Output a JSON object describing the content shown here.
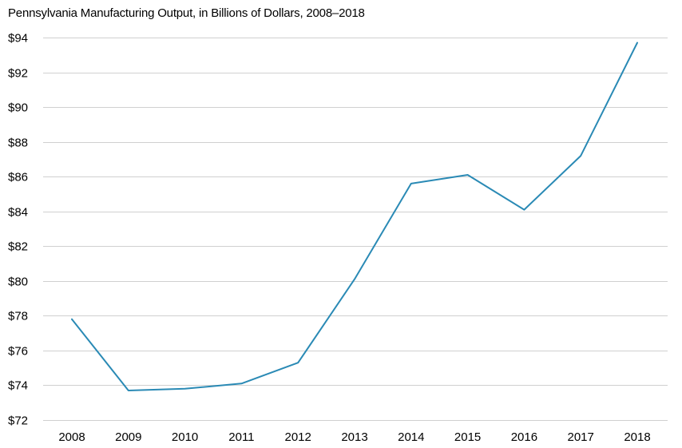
{
  "chart_data": {
    "type": "line",
    "title": "Pennsylvania Manufacturing Output, in Billions of Dollars, 2008–2018",
    "xlabel": "",
    "ylabel": "",
    "categories": [
      "2008",
      "2009",
      "2010",
      "2011",
      "2012",
      "2013",
      "2014",
      "2015",
      "2016",
      "2017",
      "2018"
    ],
    "series": [
      {
        "values": [
          77.8,
          73.7,
          73.8,
          74.1,
          75.3,
          80.1,
          85.6,
          86.1,
          84.1,
          87.2,
          93.7
        ],
        "color": "#2a8ab5"
      }
    ],
    "ylim": [
      72,
      94
    ],
    "yticks": [
      72,
      74,
      76,
      78,
      80,
      82,
      84,
      86,
      88,
      90,
      92,
      94
    ],
    "ytick_labels": [
      "$72",
      "$74",
      "$76",
      "$78",
      "$80",
      "$82",
      "$84",
      "$86",
      "$88",
      "$90",
      "$92",
      "$94"
    ],
    "grid": true,
    "legend": "none"
  }
}
